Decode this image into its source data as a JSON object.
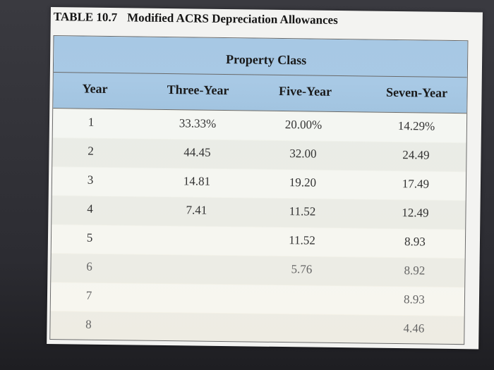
{
  "table": {
    "number": "TABLE 10.7",
    "title": "Modified ACRS Depreciation Allowances",
    "group_header": "Property Class",
    "columns": [
      "Year",
      "Three-Year",
      "Five-Year",
      "Seven-Year"
    ],
    "rows": [
      {
        "year": "1",
        "three": "33.33%",
        "five": "20.00%",
        "seven": "14.29%"
      },
      {
        "year": "2",
        "three": "44.45",
        "five": "32.00",
        "seven": "24.49"
      },
      {
        "year": "3",
        "three": "14.81",
        "five": "19.20",
        "seven": "17.49"
      },
      {
        "year": "4",
        "three": "7.41",
        "five": "11.52",
        "seven": "12.49"
      },
      {
        "year": "5",
        "three": "",
        "five": "11.52",
        "seven": "8.93"
      },
      {
        "year": "6",
        "three": "",
        "five": "5.76",
        "seven": "8.92"
      },
      {
        "year": "7",
        "three": "",
        "five": "",
        "seven": "8.93"
      },
      {
        "year": "8",
        "three": "",
        "five": "",
        "seven": "4.46"
      }
    ]
  },
  "colors": {
    "header_band": "#a7c8e4",
    "body": "#eef2ec",
    "border": "#6a6a6a"
  }
}
